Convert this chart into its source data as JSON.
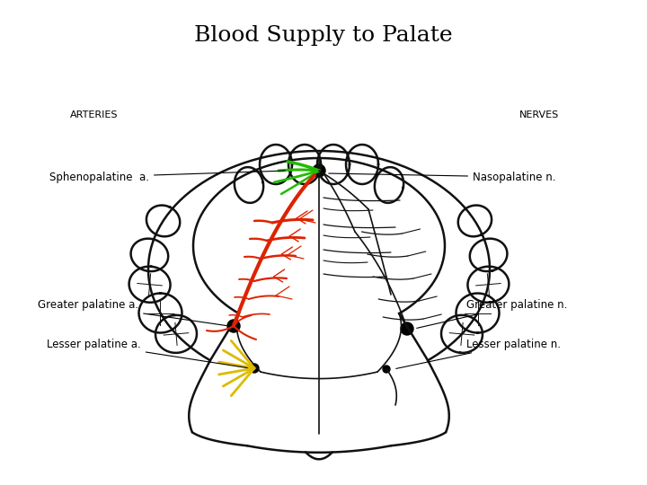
{
  "title": "Blood Supply to Palate",
  "title_fontsize": 18,
  "background_color": "#ffffff",
  "label_arteries": "ARTERIES",
  "label_nerves": "NERVES",
  "colors": {
    "sphenopalatine": "#22bb00",
    "greater_palatine_a": "#dd2200",
    "lesser_palatine_a": "#ddbb00",
    "outline": "#111111",
    "background": "#ffffff"
  },
  "fig_width": 7.2,
  "fig_height": 5.4,
  "dpi": 100
}
